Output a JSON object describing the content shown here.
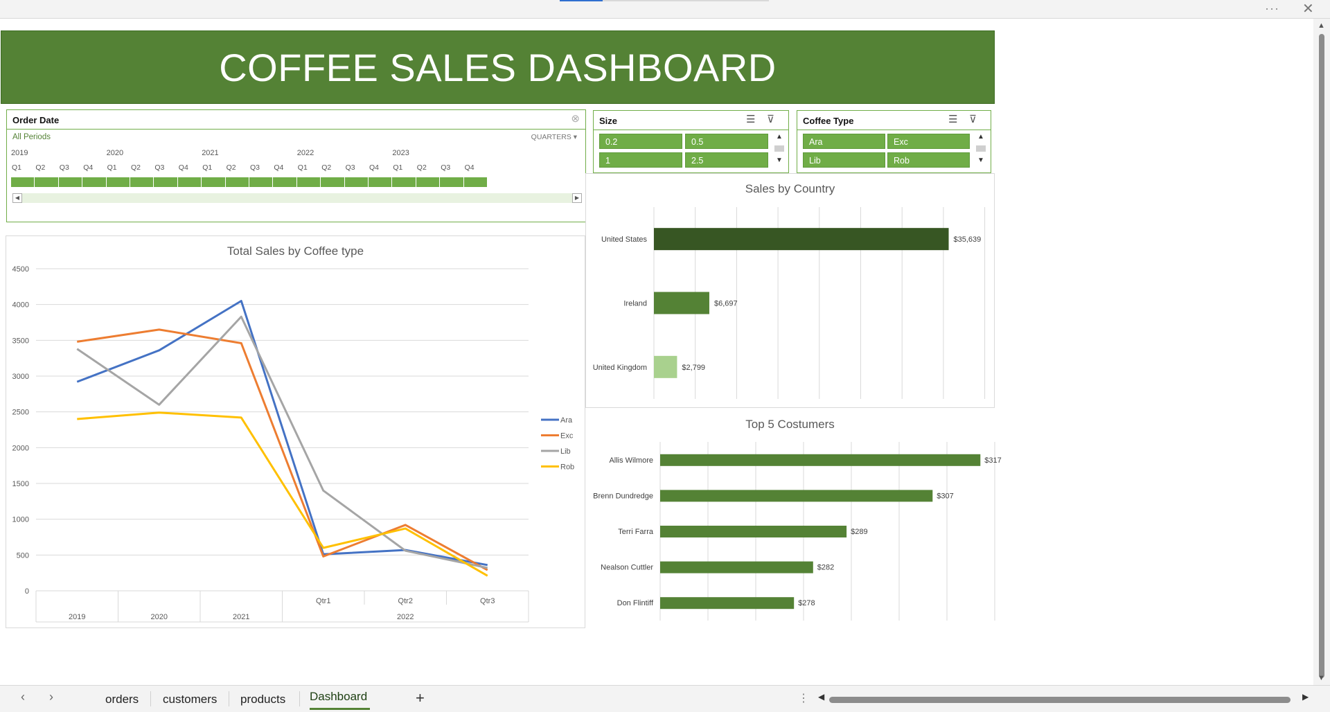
{
  "window": {
    "more_label": "···",
    "close_label": "✕"
  },
  "dashboard": {
    "title": "COFFEE SALES DASHBOARD"
  },
  "slicers": {
    "order_date": {
      "title": "Order Date",
      "periods_label": "All Periods",
      "level_label": "QUARTERS ▾",
      "years": [
        "2019",
        "2020",
        "2021",
        "2022",
        "2023"
      ],
      "quarters": [
        "Q1",
        "Q2",
        "Q3",
        "Q4",
        "Q1",
        "Q2",
        "Q3",
        "Q4",
        "Q1",
        "Q2",
        "Q3",
        "Q4",
        "Q1",
        "Q2",
        "Q3",
        "Q4",
        "Q1",
        "Q2",
        "Q3",
        "Q4"
      ]
    },
    "size": {
      "title": "Size",
      "items": [
        "0.2",
        "0.5",
        "1",
        "2.5"
      ]
    },
    "coffee_type": {
      "title": "Coffee Type",
      "items": [
        "Ara",
        "Exc",
        "Lib",
        "Rob"
      ]
    },
    "icons": {
      "multiselect": "multi-select-icon",
      "clear_filter": "clear-filter-icon"
    }
  },
  "chart_data": [
    {
      "type": "line",
      "title": "Total Sales by Coffee type",
      "x_labels": [
        "2019",
        "2020",
        "2021",
        "Qtr1",
        "Qtr2",
        "Qtr3"
      ],
      "x_group_labels": [
        "2019",
        "2020",
        "2021",
        "2022"
      ],
      "ylim": [
        0,
        4500
      ],
      "yticks": [
        0,
        500,
        1000,
        1500,
        2000,
        2500,
        3000,
        3500,
        4000,
        4500
      ],
      "grid": true,
      "legend": "right",
      "series": [
        {
          "name": "Ara",
          "color": "#4472c4",
          "values": [
            2920,
            3360,
            4050,
            510,
            570,
            360
          ]
        },
        {
          "name": "Exc",
          "color": "#ed7d31",
          "values": [
            3480,
            3650,
            3460,
            480,
            920,
            290
          ]
        },
        {
          "name": "Lib",
          "color": "#a5a5a5",
          "values": [
            3380,
            2600,
            3830,
            1400,
            560,
            320
          ]
        },
        {
          "name": "Rob",
          "color": "#ffc000",
          "values": [
            2400,
            2490,
            2420,
            600,
            870,
            210
          ]
        }
      ]
    },
    {
      "type": "bar",
      "orientation": "horizontal",
      "title": "Sales by Country",
      "categories": [
        "United States",
        "Ireland",
        "United Kingdom"
      ],
      "values": [
        35639,
        6697,
        2799
      ],
      "value_labels": [
        "$35,639",
        "$6,697",
        "$2,799"
      ],
      "colors": [
        "#375623",
        "#548235",
        "#a9d18e"
      ],
      "xlim": [
        0,
        40000
      ],
      "grid": true
    },
    {
      "type": "bar",
      "orientation": "horizontal",
      "title": "Top 5 Costumers",
      "categories": [
        "Allis Wilmore",
        "Brenn Dundredge",
        "Terri Farra",
        "Nealson Cuttler",
        "Don Flintiff"
      ],
      "values": [
        317,
        307,
        289,
        282,
        278
      ],
      "value_labels": [
        "$317",
        "$307",
        "$289",
        "$282",
        "$278"
      ],
      "color": "#548235",
      "xlim": [
        250,
        320
      ],
      "grid": true
    }
  ],
  "sheet_tabs": {
    "tabs": [
      "orders",
      "customers",
      "products",
      "Dashboard"
    ],
    "active": "Dashboard",
    "add_label": "+",
    "prev_label": "‹",
    "next_label": "›",
    "menu_label": "⋮"
  }
}
